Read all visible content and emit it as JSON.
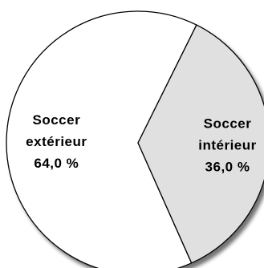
{
  "chart_data": {
    "type": "pie",
    "title": "",
    "slices": [
      {
        "label_lines": [
          "Soccer",
          "extérieur",
          "64,0 %"
        ],
        "value": 64.0,
        "color": "#ffffff"
      },
      {
        "label_lines": [
          "Soccer",
          "intérieur",
          "36,0 %"
        ],
        "value": 36.0,
        "color": "#e0e0e0"
      }
    ],
    "legend": "none",
    "shadow": true
  }
}
